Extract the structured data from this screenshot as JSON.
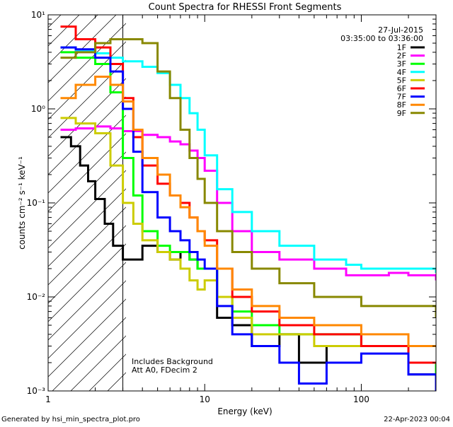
{
  "chart_data": {
    "type": "line",
    "title": "Count Spectra for RHESSI Front Segments",
    "xlabel": "Energy (keV)",
    "ylabel": "counts cm⁻² s⁻¹ keV⁻¹",
    "xscale": "log",
    "yscale": "log",
    "xlim": [
      1,
      300
    ],
    "ylim": [
      0.001,
      10
    ],
    "x_ticks": [
      {
        "value": 1,
        "label": "1"
      },
      {
        "value": 10,
        "label": "10"
      },
      {
        "value": 100,
        "label": "100"
      }
    ],
    "y_ticks": [
      {
        "value": 0.001,
        "label": "10⁻³"
      },
      {
        "value": 0.01,
        "label": "10⁻²"
      },
      {
        "value": 0.1,
        "label": "10⁻¹"
      },
      {
        "value": 1,
        "label": "10⁰"
      },
      {
        "value": 10,
        "label": "10¹"
      }
    ],
    "date": "27-Jul-2015",
    "time_range": "03:35:00 to 03:36:00",
    "hatched_region_upper_kev": 3,
    "notes": [
      "Includes Background",
      "Att A0, FDecim 2"
    ],
    "legend_position": "top-right",
    "series": [
      {
        "name": "1F",
        "color": "#000000",
        "x": [
          1.2,
          1.4,
          1.6,
          1.8,
          2.0,
          2.3,
          2.6,
          3.0,
          4.0,
          5.0,
          6.0,
          7.0,
          8.0,
          9.0,
          10.0,
          12.0,
          15.0,
          20.0,
          30.0,
          40.0,
          60.0,
          100.0,
          200.0,
          300.0
        ],
        "values": [
          0.5,
          0.4,
          0.25,
          0.17,
          0.11,
          0.06,
          0.035,
          0.025,
          0.035,
          0.03,
          0.025,
          0.03,
          0.025,
          0.02,
          0.02,
          0.006,
          0.005,
          0.003,
          0.004,
          0.002,
          0.003,
          0.003,
          0.0015,
          0.001
        ]
      },
      {
        "name": "2F",
        "color": "#ff00ff",
        "x": [
          1.2,
          1.5,
          2.0,
          2.5,
          3.0,
          4.0,
          5.0,
          6.0,
          7.0,
          8.0,
          9.0,
          10.0,
          12.0,
          15.0,
          20.0,
          30.0,
          50.0,
          80.0,
          100.0,
          150.0,
          200.0,
          300.0
        ],
        "values": [
          0.6,
          0.62,
          0.65,
          0.62,
          0.58,
          0.53,
          0.5,
          0.45,
          0.42,
          0.36,
          0.3,
          0.22,
          0.1,
          0.05,
          0.03,
          0.025,
          0.02,
          0.017,
          0.017,
          0.018,
          0.017,
          0.015
        ]
      },
      {
        "name": "3F",
        "color": "#00ff00",
        "x": [
          1.2,
          1.5,
          2.0,
          2.5,
          3.0,
          3.5,
          4.0,
          5.0,
          6.0,
          7.0,
          8.0,
          9.0,
          10.0,
          12.0,
          15.0,
          20.0,
          30.0,
          50.0,
          100.0,
          200.0,
          300.0
        ],
        "values": [
          4.0,
          3.5,
          3.0,
          1.5,
          0.3,
          0.12,
          0.05,
          0.035,
          0.03,
          0.03,
          0.025,
          0.02,
          0.02,
          0.01,
          0.007,
          0.005,
          0.004,
          0.004,
          0.003,
          0.002,
          0.0015
        ]
      },
      {
        "name": "4F",
        "color": "#00ffff",
        "x": [
          1.2,
          1.5,
          2.0,
          2.5,
          3.0,
          4.0,
          5.0,
          6.0,
          7.0,
          8.0,
          9.0,
          10.0,
          12.0,
          15.0,
          20.0,
          30.0,
          50.0,
          80.0,
          100.0,
          150.0,
          200.0,
          300.0
        ],
        "values": [
          4.5,
          4.2,
          3.9,
          3.5,
          3.2,
          2.8,
          2.4,
          1.8,
          1.3,
          0.9,
          0.6,
          0.32,
          0.14,
          0.08,
          0.05,
          0.035,
          0.025,
          0.022,
          0.02,
          0.02,
          0.02,
          0.018
        ]
      },
      {
        "name": "5F",
        "color": "#cccc00",
        "x": [
          1.2,
          1.5,
          2.0,
          2.5,
          3.0,
          3.5,
          4.0,
          5.0,
          6.0,
          7.0,
          8.0,
          9.0,
          10.0,
          12.0,
          15.0,
          20.0,
          30.0,
          50.0,
          100.0,
          200.0,
          300.0
        ],
        "values": [
          0.8,
          0.7,
          0.55,
          0.25,
          0.1,
          0.06,
          0.04,
          0.03,
          0.025,
          0.02,
          0.015,
          0.012,
          0.015,
          0.01,
          0.006,
          0.004,
          0.004,
          0.003,
          0.003,
          0.002,
          0.002
        ]
      },
      {
        "name": "6F",
        "color": "#ff0000",
        "x": [
          1.2,
          1.5,
          2.0,
          2.5,
          3.0,
          3.5,
          4.0,
          5.0,
          6.0,
          7.0,
          8.0,
          9.0,
          10.0,
          12.0,
          15.0,
          20.0,
          30.0,
          50.0,
          100.0,
          200.0,
          300.0
        ],
        "values": [
          7.5,
          5.5,
          4.5,
          3.0,
          1.3,
          0.5,
          0.25,
          0.16,
          0.12,
          0.1,
          0.07,
          0.05,
          0.04,
          0.02,
          0.01,
          0.007,
          0.005,
          0.004,
          0.003,
          0.002,
          0.002
        ]
      },
      {
        "name": "7F",
        "color": "#0000ff",
        "x": [
          1.2,
          1.5,
          2.0,
          2.5,
          3.0,
          3.5,
          4.0,
          5.0,
          6.0,
          7.0,
          8.0,
          9.0,
          10.0,
          12.0,
          15.0,
          20.0,
          30.0,
          40.0,
          60.0,
          100.0,
          200.0,
          300.0
        ],
        "values": [
          4.5,
          4.3,
          3.5,
          2.5,
          1.0,
          0.35,
          0.13,
          0.07,
          0.05,
          0.04,
          0.03,
          0.025,
          0.02,
          0.008,
          0.004,
          0.003,
          0.002,
          0.0012,
          0.002,
          0.0025,
          0.0015,
          0.001
        ]
      },
      {
        "name": "8F",
        "color": "#ff8800",
        "x": [
          1.2,
          1.5,
          2.0,
          2.5,
          3.0,
          3.5,
          4.0,
          5.0,
          6.0,
          7.0,
          8.0,
          9.0,
          10.0,
          12.0,
          15.0,
          20.0,
          30.0,
          50.0,
          100.0,
          200.0,
          300.0
        ],
        "values": [
          1.3,
          1.8,
          2.2,
          1.8,
          1.2,
          0.6,
          0.3,
          0.2,
          0.12,
          0.09,
          0.07,
          0.05,
          0.035,
          0.02,
          0.012,
          0.008,
          0.006,
          0.005,
          0.004,
          0.003,
          0.003
        ]
      },
      {
        "name": "9F",
        "color": "#888800",
        "x": [
          1.2,
          1.5,
          2.0,
          2.5,
          3.0,
          4.0,
          5.0,
          6.0,
          7.0,
          8.0,
          9.0,
          10.0,
          12.0,
          15.0,
          20.0,
          30.0,
          50.0,
          100.0,
          150.0,
          200.0,
          300.0
        ],
        "values": [
          3.5,
          4.0,
          5.0,
          5.5,
          5.5,
          5.0,
          2.5,
          1.3,
          0.6,
          0.3,
          0.18,
          0.1,
          0.05,
          0.03,
          0.02,
          0.014,
          0.01,
          0.008,
          0.008,
          0.008,
          0.006
        ]
      }
    ]
  },
  "footer": {
    "generated_by": "Generated by hsi_min_spectra_plot.pro",
    "generated_date": "22-Apr-2023 00:04"
  }
}
